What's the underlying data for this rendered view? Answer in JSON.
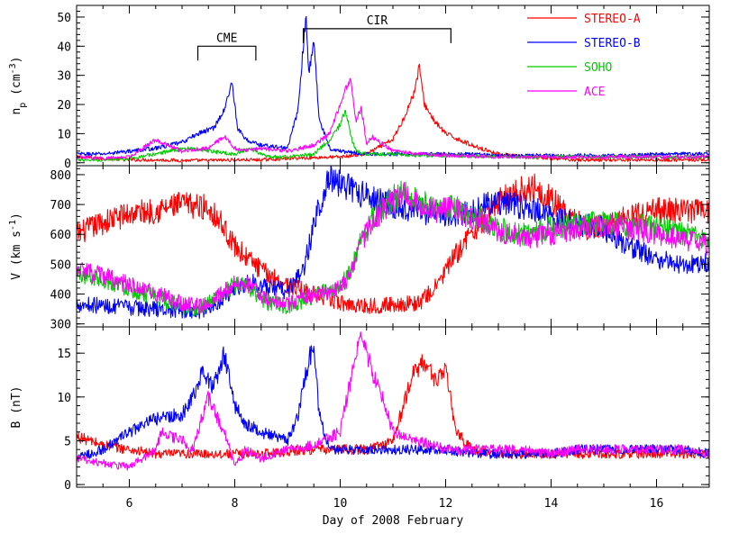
{
  "chart_data": {
    "type": "line",
    "xlabel": "Day of 2008 February",
    "xlim": [
      5,
      17
    ],
    "x_ticks": [
      6,
      8,
      10,
      12,
      14,
      16
    ],
    "legend_position": "top-right",
    "series_colors": {
      "STEREO-A": "#ff0000",
      "STEREO-B": "#0000ff",
      "SOHO": "#00cc00",
      "ACE": "#ff00ff"
    },
    "legend": [
      "STEREO-A",
      "STEREO-B",
      "SOHO",
      "ACE"
    ],
    "panels": [
      {
        "id": "density",
        "ylabel": "n_p (cm^-3)",
        "ylabel_parts": {
          "base": "n",
          "sub": "p",
          "unit_open": " (cm",
          "sup": "-3",
          "unit_close": ")"
        },
        "ylim": [
          -1,
          54
        ],
        "y_ticks": [
          0,
          10,
          20,
          30,
          40,
          50
        ],
        "annotations": [
          {
            "label": "CME",
            "x_start": 7.3,
            "x_end": 8.4,
            "y": 40
          },
          {
            "label": "CIR",
            "x_start": 9.3,
            "x_end": 12.1,
            "y": 46
          }
        ],
        "series": [
          {
            "name": "STEREO-A",
            "x": [
              5,
              5.5,
              6,
              6.5,
              7,
              7.5,
              8,
              8.5,
              9,
              9.5,
              10,
              10.5,
              11,
              11.2,
              11.4,
              11.5,
              11.6,
              11.8,
              12,
              12.5,
              13,
              13.5,
              14,
              14.5,
              15,
              15.5,
              16,
              16.5,
              17
            ],
            "y": [
              2,
              1.5,
              1,
              1,
              0.8,
              0.8,
              1,
              1,
              1.5,
              1.8,
              2,
              3,
              8,
              15,
              24,
              33,
              20,
              14,
              10,
              6,
              3,
              2,
              1.5,
              1,
              1,
              1,
              1,
              1,
              1
            ]
          },
          {
            "name": "STEREO-B",
            "x": [
              5,
              5.5,
              6,
              6.5,
              7,
              7.3,
              7.6,
              7.8,
              7.95,
              8.05,
              8.2,
              8.5,
              9,
              9.2,
              9.3,
              9.35,
              9.4,
              9.5,
              9.6,
              9.8,
              10,
              10.5,
              11,
              11.5,
              12,
              12.5,
              13,
              13.5,
              14,
              14.5,
              15,
              15.5,
              16,
              16.5,
              17
            ],
            "y": [
              3,
              3,
              4,
              5,
              7,
              10,
              12,
              18,
              28,
              12,
              8,
              6,
              5,
              18,
              40,
              51,
              30,
              42,
              15,
              5,
              4,
              3,
              3,
              3,
              3,
              3,
              2.5,
              2.5,
              2.5,
              2.5,
              2.5,
              2.5,
              3,
              3,
              3
            ]
          },
          {
            "name": "SOHO",
            "x": [
              5,
              5.5,
              6,
              6.5,
              7,
              7.5,
              8,
              8.3,
              8.6,
              9,
              9.5,
              9.8,
              10,
              10.1,
              10.2,
              10.3,
              10.5,
              11,
              11.5,
              12,
              13,
              14,
              15,
              16,
              17
            ],
            "y": [
              1,
              1,
              1.5,
              3,
              5,
              4,
              3,
              5,
              2,
              2,
              3,
              8,
              13,
              18,
              9,
              4,
              3,
              3,
              2.5,
              2.5,
              2,
              2,
              2,
              2,
              2
            ]
          },
          {
            "name": "ACE",
            "x": [
              5,
              5.5,
              6,
              6.5,
              6.6,
              7,
              7.5,
              7.8,
              8,
              8.2,
              8.5,
              9,
              9.5,
              9.8,
              10,
              10.1,
              10.2,
              10.3,
              10.4,
              10.5,
              10.6,
              11,
              11.5,
              12,
              13,
              14,
              15,
              16,
              17
            ],
            "y": [
              2,
              1.5,
              2,
              8,
              7,
              4,
              5,
              9,
              5,
              4,
              5,
              4,
              6,
              10,
              20,
              26,
              28,
              14,
              19,
              6,
              9,
              4,
              3,
              2.5,
              2,
              2,
              2,
              2,
              2
            ]
          }
        ]
      },
      {
        "id": "speed",
        "ylabel": "V (km s^-1)",
        "ylabel_parts": {
          "base": "V (km s",
          "sup": "-1",
          "unit_close": ")"
        },
        "ylim": [
          290,
          830
        ],
        "y_ticks": [
          300,
          400,
          500,
          600,
          700,
          800
        ],
        "series": [
          {
            "name": "STEREO-A",
            "x": [
              5,
              5.5,
              6,
              6.5,
              7,
              7.5,
              7.7,
              8,
              8.5,
              9,
              9.5,
              10,
              10.5,
              11,
              11.5,
              11.8,
              12,
              12.3,
              12.7,
              13,
              13.3,
              13.7,
              14,
              14.3,
              14.7,
              15,
              15.5,
              16,
              16.5,
              17
            ],
            "y": [
              600,
              640,
              670,
              680,
              700,
              690,
              650,
              560,
              480,
              430,
              400,
              370,
              360,
              365,
              370,
              420,
              480,
              560,
              650,
              710,
              740,
              760,
              720,
              660,
              620,
              630,
              660,
              680,
              680,
              680
            ]
          },
          {
            "name": "STEREO-B",
            "x": [
              5,
              5.5,
              6,
              6.5,
              7,
              7.3,
              7.6,
              8,
              8.3,
              8.6,
              9,
              9.3,
              9.6,
              9.8,
              10,
              10.3,
              10.7,
              11,
              11.5,
              12,
              12.5,
              13,
              13.3,
              13.7,
              14,
              14.3,
              14.7,
              15,
              15.3,
              15.7,
              16,
              16.5,
              17
            ],
            "y": [
              370,
              360,
              355,
              350,
              345,
              340,
              360,
              420,
              440,
              420,
              410,
              480,
              700,
              790,
              770,
              740,
              720,
              700,
              680,
              660,
              680,
              710,
              700,
              680,
              660,
              640,
              630,
              620,
              580,
              540,
              520,
              500,
              510
            ]
          },
          {
            "name": "SOHO",
            "x": [
              5,
              5.5,
              6,
              6.5,
              7,
              7.3,
              7.6,
              8,
              8.3,
              8.6,
              9,
              9.3,
              9.6,
              9.8,
              10,
              10.2,
              10.4,
              10.6,
              10.8,
              11,
              11.2,
              11.4,
              11.6,
              11.8,
              12,
              12.3,
              12.7,
              13,
              13.5,
              14,
              14.5,
              15,
              15.5,
              16,
              16.5,
              17
            ],
            "y": [
              470,
              450,
              420,
              390,
              360,
              350,
              380,
              430,
              420,
              370,
              360,
              380,
              400,
              410,
              420,
              480,
              580,
              650,
              690,
              720,
              740,
              720,
              700,
              690,
              690,
              680,
              650,
              620,
              600,
              620,
              630,
              640,
              630,
              620,
              600,
              580
            ]
          },
          {
            "name": "ACE",
            "x": [
              5,
              5.5,
              6,
              6.5,
              7,
              7.3,
              7.6,
              8,
              8.3,
              8.6,
              9,
              9.3,
              9.6,
              9.8,
              10,
              10.2,
              10.4,
              10.6,
              10.8,
              11,
              11.2,
              11.4,
              11.6,
              11.8,
              12,
              12.3,
              12.7,
              13,
              13.5,
              14,
              14.5,
              15,
              15.5,
              16,
              16.5,
              17
            ],
            "y": [
              480,
              460,
              430,
              400,
              370,
              360,
              380,
              440,
              430,
              380,
              370,
              390,
              400,
              410,
              420,
              470,
              570,
              640,
              680,
              710,
              730,
              710,
              690,
              680,
              690,
              670,
              640,
              610,
              590,
              600,
              620,
              630,
              620,
              600,
              580,
              560
            ]
          }
        ]
      },
      {
        "id": "field",
        "ylabel": "B (nT)",
        "ylabel_parts": {
          "base": "B (nT)"
        },
        "ylim": [
          -0.3,
          18
        ],
        "y_ticks": [
          0,
          5,
          10,
          15
        ],
        "series": [
          {
            "name": "STEREO-A",
            "x": [
              5,
              5.5,
              6,
              6.5,
              7,
              7.5,
              8,
              8.5,
              9,
              9.5,
              10,
              10.5,
              11,
              11.2,
              11.4,
              11.6,
              11.8,
              12,
              12.2,
              12.5,
              13,
              13.5,
              14,
              14.5,
              15,
              15.5,
              16,
              16.5,
              17
            ],
            "y": [
              5.5,
              4.5,
              4,
              3.5,
              3.5,
              3.5,
              3.5,
              3.5,
              3.8,
              4,
              4,
              4,
              5,
              9,
              13,
              14,
              12,
              13,
              6,
              4,
              3.5,
              3.5,
              3.5,
              3.5,
              3.5,
              3.5,
              3.5,
              3.5,
              3.5
            ]
          },
          {
            "name": "STEREO-B",
            "x": [
              5,
              5.5,
              6,
              6.5,
              7,
              7.2,
              7.4,
              7.6,
              7.8,
              8,
              8.2,
              8.5,
              9,
              9.2,
              9.4,
              9.5,
              9.6,
              9.8,
              10,
              10.5,
              11,
              11.5,
              12,
              12.5,
              13,
              13.5,
              14,
              14.5,
              15,
              15.5,
              16,
              16.5,
              17
            ],
            "y": [
              3,
              4,
              6,
              7.5,
              8,
              10,
              13,
              11,
              15,
              9,
              7,
              6,
              5,
              8,
              14,
              16,
              8,
              4,
              4,
              4,
              4,
              4,
              4,
              3.5,
              3.5,
              3.5,
              3.5,
              4,
              4,
              4,
              4,
              4,
              3.5
            ]
          },
          {
            "name": "ACE",
            "x": [
              5,
              5.5,
              6,
              6.5,
              6.6,
              7,
              7.2,
              7.5,
              7.8,
              8,
              8.2,
              8.5,
              9,
              9.5,
              10,
              10.2,
              10.4,
              10.6,
              10.8,
              11,
              11.5,
              12,
              12.5,
              13,
              13.5,
              14,
              14.5,
              15,
              15.5,
              16,
              16.5,
              17
            ],
            "y": [
              3,
              2.5,
              2,
              4,
              6,
              5,
              4,
              10,
              6,
              2,
              4,
              3,
              4,
              4.5,
              6,
              12,
              17,
              13,
              10,
              6,
              5,
              4,
              4,
              4,
              4,
              3.5,
              4,
              4,
              4,
              4,
              4,
              3.5
            ]
          }
        ]
      }
    ]
  }
}
